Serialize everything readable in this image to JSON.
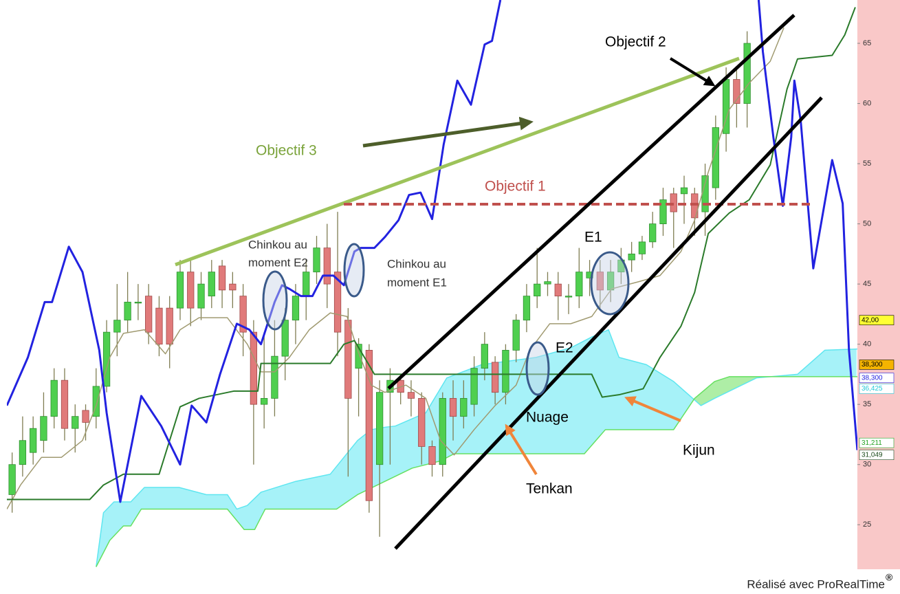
{
  "chart_data": {
    "type": "candlestick",
    "up_color": "#4fcf4f",
    "down_color": "#e07a7a",
    "wick_color": "#7f7d52",
    "xlim": [
      -0.5,
      80.5
    ],
    "ylim": [
      21.3,
      68.6
    ],
    "yticks": [
      25,
      30,
      35,
      40,
      45,
      50,
      55,
      60,
      65
    ],
    "open": [
      27.5,
      30,
      31,
      32,
      34,
      37,
      33,
      34.5,
      34,
      36.5,
      41,
      42,
      43.5,
      44,
      43,
      43,
      43,
      46,
      43,
      44,
      46.5,
      45,
      44,
      41,
      35,
      35.5,
      39,
      42,
      44,
      46,
      48,
      46,
      42,
      38,
      39.5,
      30,
      36,
      37,
      36,
      35.5,
      31.5,
      30,
      35.5,
      34,
      35,
      38,
      38.5,
      36,
      39.5,
      42,
      44,
      45,
      45,
      44,
      44,
      45.5,
      46,
      44.5,
      46,
      47,
      47.5,
      48.5,
      50,
      52.5,
      52.5,
      52.5,
      51,
      53,
      57.5,
      62,
      60
    ],
    "high": [
      31,
      34,
      34,
      36,
      38,
      38,
      35,
      35,
      38,
      42,
      45,
      46,
      45,
      45,
      44,
      44,
      47,
      47,
      46,
      47,
      47,
      46,
      45,
      42,
      41,
      42,
      43,
      45,
      47,
      49,
      50,
      51,
      43,
      40.5,
      40,
      37,
      38,
      37.5,
      37,
      36,
      32,
      36,
      37,
      37,
      39,
      41,
      39,
      40,
      42.5,
      45,
      48,
      46,
      46,
      45,
      48,
      47,
      47,
      47,
      48,
      48.5,
      49,
      51,
      53,
      53,
      54,
      53,
      55,
      59,
      63,
      63,
      66
    ],
    "low": [
      26,
      29,
      30,
      31,
      33,
      32,
      31,
      32,
      33,
      36,
      39,
      41,
      42,
      40,
      39,
      38,
      42,
      41.5,
      42,
      43,
      43,
      43,
      39,
      30,
      33,
      34,
      37,
      40,
      42,
      45,
      43,
      39,
      29,
      34,
      26,
      24,
      30,
      35,
      34,
      30,
      29,
      29,
      32,
      33,
      34,
      37,
      35,
      35,
      38.5,
      41,
      43,
      44,
      42,
      42.5,
      43,
      44,
      43,
      43.5,
      45,
      46,
      47,
      48,
      49,
      48,
      50,
      49,
      49,
      52,
      56,
      58,
      58
    ],
    "close": [
      30,
      32,
      33,
      34,
      37,
      33,
      34,
      33.5,
      36.5,
      41,
      42,
      43.5,
      43.5,
      41,
      40,
      40,
      46,
      43,
      45,
      46,
      44.5,
      44.5,
      41,
      35,
      35.5,
      39,
      42,
      44,
      46,
      48,
      45,
      41,
      35.5,
      40,
      27,
      36,
      37,
      36,
      35.5,
      31.5,
      30,
      35.5,
      34,
      35.5,
      38,
      40,
      36,
      39.5,
      42,
      44,
      45,
      45.2,
      44,
      44,
      46,
      46,
      44.5,
      46,
      47,
      47.5,
      48.5,
      50,
      52,
      51,
      53,
      50.5,
      54,
      58,
      62,
      60,
      65
    ],
    "series": [
      {
        "color": "#2222e0",
        "width": 3,
        "x": [
          -0.5,
          1.5,
          3.1,
          3.8,
          5.4,
          6.7,
          8.3,
          9.0,
          10.3,
          12.3,
          14.2,
          16.0,
          17.1,
          18.5,
          19.8,
          21.4,
          22.6,
          23.7,
          25.0,
          25.7,
          26.4,
          27.5,
          28.6,
          29.6,
          30.6,
          31.6,
          32.6,
          33.2,
          34.5,
          35.5,
          36.8,
          37.8,
          38.9,
          40.0,
          41.1,
          42.4,
          43.7,
          45.0,
          45.7,
          46.5,
          60,
          71.1,
          71.5,
          72.5,
          73.4,
          74.2,
          74.5,
          75.1,
          76.3,
          78.1,
          79.1,
          79.7,
          80.5
        ],
        "values": [
          34.9,
          38.9,
          43.5,
          43.5,
          48.1,
          46.0,
          39.5,
          34.3,
          26.9,
          35.7,
          33.2,
          30.0,
          34.9,
          33.5,
          37.5,
          41.7,
          41.2,
          40.0,
          43.5,
          44.9,
          44.6,
          44.0,
          44.0,
          45.7,
          45.7,
          44.9,
          47.7,
          48.0,
          48.0,
          48.9,
          50.3,
          52.4,
          52.6,
          50.4,
          56.6,
          61.9,
          59.9,
          64.9,
          65.2,
          68.6,
          null,
          68.6,
          64.3,
          57.2,
          51.5,
          57.2,
          61.9,
          58.6,
          46.3,
          55.3,
          51.7,
          39.5,
          31.2
        ]
      },
      {
        "color": "#a09a70",
        "width": 1.5,
        "x": [
          -0.5,
          0.8,
          2.8,
          4.7,
          6.7,
          8.0,
          9.3,
          10.6,
          12.6,
          14.6,
          16.0,
          17.8,
          20.5,
          22.4,
          23.7,
          25.0,
          26.4,
          28.3,
          30.3,
          31.9,
          32.9,
          34.2,
          35.5,
          37.5,
          39.4,
          40.8,
          42.1,
          44.0,
          46.0,
          48.0,
          49.3,
          51.2,
          53.2,
          55.2,
          57.1,
          59.7,
          61.7,
          63.7,
          65.0,
          66.3,
          68.3,
          70.2,
          72.2,
          73.5
        ],
        "values": [
          26.3,
          28.3,
          30.6,
          30.6,
          32.0,
          34.9,
          38.9,
          40.9,
          41.2,
          39.2,
          41.2,
          42.2,
          42.2,
          40.0,
          37.7,
          37.7,
          38.9,
          41.2,
          42.6,
          42.3,
          39.5,
          36.6,
          36.0,
          36.6,
          35.5,
          32.0,
          30.8,
          32.9,
          34.9,
          36.6,
          39.5,
          41.7,
          41.7,
          42.3,
          44.6,
          45.2,
          45.7,
          47.7,
          50.3,
          54.3,
          59.5,
          61.7,
          63.5,
          66.3
        ]
      },
      {
        "color": "#2a7a2a",
        "width": 2,
        "x": [
          -0.5,
          7.4,
          8.7,
          10.6,
          14.0,
          16.0,
          17.8,
          21.1,
          23.4,
          23.7,
          30.3,
          31.6,
          32.6,
          33.9,
          34.5,
          55.2,
          56.2,
          57.8,
          60.1,
          61.7,
          63.7,
          65.0,
          66.3,
          68.3,
          70.2,
          72.2,
          73.8,
          74.8,
          78.1,
          79.3,
          80.3
        ],
        "values": [
          27.1,
          27.1,
          28.3,
          29.2,
          29.2,
          34.8,
          35.5,
          36.1,
          36.1,
          38.4,
          38.4,
          40.0,
          40.3,
          38.4,
          37.5,
          37.5,
          35.6,
          35.8,
          36.3,
          38.9,
          41.5,
          44.3,
          49.2,
          50.9,
          52.0,
          54.9,
          61.2,
          63.7,
          64.0,
          65.7,
          68.0
        ]
      },
      {
        "color": "#5ee6f0",
        "width": 1.5,
        "x": [
          8.0,
          8.7,
          9.7,
          11.3,
          12.6,
          15.9,
          18.5,
          20.5,
          21.4,
          22.4,
          23.7,
          27.0,
          30.3,
          31.6,
          32.9,
          34.2,
          35.5,
          36.5,
          39.4,
          41.4,
          44.7,
          47.3,
          49.9,
          53.2,
          55.2,
          56.8,
          57.8,
          60.4,
          63.0,
          65.6,
          66.9,
          70.9,
          74.8,
          77.4,
          80.5
        ],
        "values": [
          21.5,
          26.0,
          26.9,
          26.9,
          28.1,
          28.1,
          27.5,
          27.5,
          26.3,
          26.6,
          27.7,
          28.6,
          29.2,
          30.6,
          32.0,
          32.9,
          33.1,
          33.2,
          34.3,
          37.2,
          38.3,
          38.6,
          38.9,
          39.7,
          40.6,
          41.2,
          38.9,
          38.3,
          36.9,
          34.9,
          35.5,
          37.2,
          37.5,
          39.5,
          39.6
        ]
      },
      {
        "color": "#66e060",
        "width": 1.5,
        "x": [
          8.0,
          9.3,
          10.6,
          11.3,
          12.3,
          20.5,
          22.1,
          23.1,
          24.1,
          30.9,
          32.9,
          35.5,
          38.1,
          40.8,
          42.1,
          54.5,
          56.5,
          63.0,
          65.0,
          66.9,
          68.3,
          80.5
        ],
        "values": [
          21.5,
          23.7,
          24.9,
          24.9,
          26.3,
          26.3,
          24.6,
          24.6,
          26.3,
          26.3,
          27.5,
          28.6,
          29.7,
          30.3,
          30.9,
          30.9,
          32.9,
          32.9,
          35.5,
          36.9,
          37.3,
          37.3
        ]
      }
    ],
    "cloud_up_color": "#a6f2f8",
    "cloud_down_color": "#aeeea6",
    "price_labels": [
      {
        "value": 42,
        "label": "42,00",
        "background": "#ffff33",
        "color": "#000000"
      },
      {
        "value": 38.3,
        "label": "38,300",
        "background": "#f5b400",
        "color": "#000000"
      },
      {
        "value": 37.2,
        "label": "38,300",
        "background": "#ffffff",
        "color": "#2222e0"
      },
      {
        "value": 36.3,
        "label": "36,425",
        "background": "#ffffff",
        "color": "#20c8d8"
      },
      {
        "value": 31.8,
        "label": "31,211",
        "background": "#ffffff",
        "color": "#20a020"
      },
      {
        "value": 30.8,
        "label": "31,049",
        "background": "#ffffff",
        "color": "#1a4a1a"
      }
    ],
    "annotations": {
      "objectif_1": "Objectif 1",
      "objectif_2": "Objectif 2",
      "objectif_3": "Objectif 3",
      "chinkou_e2": [
        "Chinkou au",
        "moment E2"
      ],
      "chinkou_e1": [
        "Chinkou au",
        "moment E1"
      ],
      "e1": "E1",
      "e2": "E2",
      "nuage": "Nuage",
      "tenkan": "Tenkan",
      "kijun": "Kijun"
    },
    "footer": "Réalisé avec ProRealTime",
    "trademark": "®"
  }
}
